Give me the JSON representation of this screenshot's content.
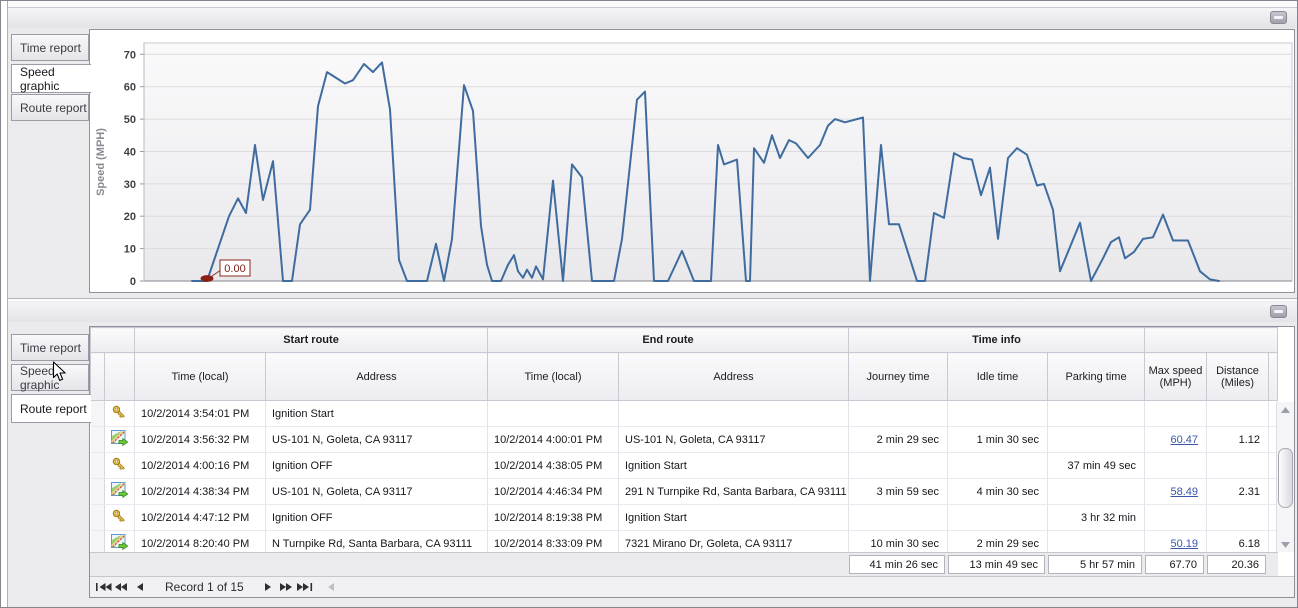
{
  "panels": {
    "top": {
      "tabs": [
        {
          "label": "Time report",
          "active": false
        },
        {
          "label": "Speed graphic",
          "active": true
        },
        {
          "label": "Route report",
          "active": false
        }
      ],
      "collapse_icon": "minimize-bar"
    },
    "bottom": {
      "tabs": [
        {
          "label": "Time report",
          "active": false
        },
        {
          "label": "Speed graphic",
          "active": false,
          "hover_cursor": true
        },
        {
          "label": "Route report",
          "active": true
        }
      ],
      "collapse_icon": "minimize-bar"
    }
  },
  "chart_data": {
    "type": "line",
    "title": "",
    "xlabel": "",
    "ylabel": "Speed (MPH)",
    "yticks": [
      0,
      10,
      20,
      30,
      40,
      50,
      60,
      70
    ],
    "ylim": [
      0,
      73.5
    ],
    "grid": "horizontal",
    "legend": "none",
    "line_color": "#3f6c9e",
    "plot_bg_top": "#fafafb",
    "plot_bg_bottom": "#e9e9ec",
    "annotation": {
      "label": "0.00",
      "x": 63,
      "y": 0,
      "marker_color": "#8b2015",
      "box_border": "#8b2a20",
      "text_color": "#7a241a"
    },
    "series": [
      {
        "name": "Speed",
        "points": [
          [
            48,
            0
          ],
          [
            63,
            0
          ],
          [
            85,
            20
          ],
          [
            94,
            25.5
          ],
          [
            102,
            21
          ],
          [
            111,
            42
          ],
          [
            119,
            25
          ],
          [
            129,
            37
          ],
          [
            139,
            0
          ],
          [
            148,
            0
          ],
          [
            156,
            17.5
          ],
          [
            166,
            22
          ],
          [
            174,
            54
          ],
          [
            183,
            64.5
          ],
          [
            201,
            61
          ],
          [
            209,
            62
          ],
          [
            220,
            67
          ],
          [
            229,
            64.5
          ],
          [
            238,
            67.5
          ],
          [
            246,
            53
          ],
          [
            255,
            6.5
          ],
          [
            263,
            0
          ],
          [
            283,
            0
          ],
          [
            292,
            11.5
          ],
          [
            300,
            0
          ],
          [
            308,
            13
          ],
          [
            320,
            60.5
          ],
          [
            329,
            52.5
          ],
          [
            337,
            17
          ],
          [
            343,
            5
          ],
          [
            348,
            0
          ],
          [
            357,
            0
          ],
          [
            364,
            5
          ],
          [
            370,
            8
          ],
          [
            374,
            3
          ],
          [
            379,
            1
          ],
          [
            383,
            3.5
          ],
          [
            388,
            1
          ],
          [
            392,
            4.5
          ],
          [
            399,
            0.5
          ],
          [
            409,
            31
          ],
          [
            419,
            0
          ],
          [
            428,
            36
          ],
          [
            438,
            32
          ],
          [
            448,
            0
          ],
          [
            470,
            0
          ],
          [
            478,
            13
          ],
          [
            493,
            56
          ],
          [
            501,
            58.5
          ],
          [
            510,
            0
          ],
          [
            524,
            0
          ],
          [
            538,
            9.3
          ],
          [
            550,
            0
          ],
          [
            567,
            0
          ],
          [
            574,
            42
          ],
          [
            580,
            36
          ],
          [
            593,
            37.5
          ],
          [
            602,
            0
          ],
          [
            606,
            0
          ],
          [
            610,
            41
          ],
          [
            620,
            36.5
          ],
          [
            628,
            45
          ],
          [
            636,
            38
          ],
          [
            645,
            43.5
          ],
          [
            652,
            42.5
          ],
          [
            664,
            38
          ],
          [
            676,
            42
          ],
          [
            684,
            48
          ],
          [
            691,
            50
          ],
          [
            701,
            49
          ],
          [
            719,
            50.5
          ],
          [
            726,
            0
          ],
          [
            737,
            42
          ],
          [
            745,
            17.5
          ],
          [
            755,
            17.5
          ],
          [
            773,
            0
          ],
          [
            781,
            0
          ],
          [
            790,
            21
          ],
          [
            800,
            19.5
          ],
          [
            810,
            39.5
          ],
          [
            819,
            38
          ],
          [
            828,
            37.5
          ],
          [
            837,
            26.5
          ],
          [
            846,
            35
          ],
          [
            854,
            13
          ],
          [
            864,
            38
          ],
          [
            873,
            41
          ],
          [
            883,
            39
          ],
          [
            893,
            29.5
          ],
          [
            900,
            30
          ],
          [
            909,
            22
          ],
          [
            916,
            3
          ],
          [
            936,
            18
          ],
          [
            947,
            0
          ],
          [
            959,
            7
          ],
          [
            967,
            12
          ],
          [
            975,
            13.5
          ],
          [
            981,
            7
          ],
          [
            990,
            9
          ],
          [
            999,
            13
          ],
          [
            1009,
            13.5
          ],
          [
            1019,
            20.5
          ],
          [
            1029,
            12.5
          ],
          [
            1044,
            12.5
          ],
          [
            1056,
            3
          ],
          [
            1066,
            0.5
          ],
          [
            1075,
            0
          ]
        ]
      }
    ]
  },
  "grid": {
    "group_headers": [
      "Start route",
      "End route",
      "Time info"
    ],
    "columns": [
      "Time (local)",
      "Address",
      "Time (local)",
      "Address",
      "Journey time",
      "Idle time",
      "Parking time",
      "Max speed (MPH)",
      "Distance (Miles)"
    ],
    "link_color": "#3c56aa",
    "rows": [
      {
        "icon": "key",
        "cells": [
          "10/2/2014 3:54:01 PM",
          "Ignition Start",
          "",
          "",
          "",
          "",
          "",
          "",
          ""
        ],
        "link": false
      },
      {
        "icon": "route",
        "cells": [
          "10/2/2014 3:56:32 PM",
          "US-101 N, Goleta, CA 93117",
          "10/2/2014 4:00:01 PM",
          "US-101 N, Goleta, CA 93117",
          "2 min 29 sec",
          "1 min 30 sec",
          "",
          "60.47",
          "1.12"
        ],
        "link": true
      },
      {
        "icon": "key",
        "cells": [
          "10/2/2014 4:00:16 PM",
          "Ignition OFF",
          "10/2/2014 4:38:05 PM",
          "Ignition Start",
          "",
          "",
          "37 min 49 sec",
          "",
          ""
        ],
        "link": false
      },
      {
        "icon": "route",
        "cells": [
          "10/2/2014 4:38:34 PM",
          "US-101 N, Goleta, CA 93117",
          "10/2/2014 4:46:34 PM",
          "291 N Turnpike Rd, Santa Barbara, CA 93111",
          "3 min 59 sec",
          "4 min 30 sec",
          "",
          "58.49",
          "2.31"
        ],
        "link": true
      },
      {
        "icon": "key",
        "cells": [
          "10/2/2014 4:47:12 PM",
          "Ignition OFF",
          "10/2/2014 8:19:38 PM",
          "Ignition Start",
          "",
          "",
          "3 hr 32 min",
          "",
          ""
        ],
        "link": false
      },
      {
        "icon": "route",
        "cells": [
          "10/2/2014 8:20:40 PM",
          "N Turnpike Rd, Santa Barbara, CA 93111",
          "10/2/2014 8:33:09 PM",
          "7321 Mirano Dr, Goleta, CA 93117",
          "10 min 30 sec",
          "2 min 29 sec",
          "",
          "50.19",
          "6.18"
        ],
        "link": true
      }
    ],
    "summary": [
      "41 min 26 sec",
      "13 min 49 sec",
      "5 hr 57 min",
      "67.70",
      "20.36"
    ],
    "navigator": {
      "label": "Record 1 of 15",
      "left_buttons": [
        "first",
        "prev-page",
        "prev"
      ],
      "right_buttons": [
        "next",
        "next-page",
        "last"
      ]
    }
  }
}
